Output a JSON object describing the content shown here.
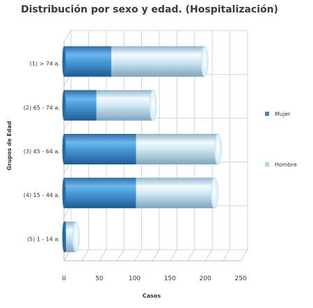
{
  "chart_data": {
    "type": "bar",
    "orientation": "horizontal",
    "stacked": true,
    "style": "3d-cylinder",
    "title": "Distribución por sexo y edad. (Hospitalización)",
    "xlabel": "Casos",
    "ylabel": "Grupos de Edad",
    "xlim": [
      0,
      250
    ],
    "xticks": [
      "0",
      "50",
      "100",
      "150",
      "200",
      "250"
    ],
    "grid": true,
    "legend_position": "right",
    "categories": [
      "(1) > 74 a.",
      "(2) 65 - 74 a.",
      "(3) 45 - 64 a.",
      "(4) 15 - 44 a.",
      "(5) 1 - 14 a."
    ],
    "series": [
      {
        "name": "Mujer",
        "color": "#3d87c8",
        "values": [
          67,
          46,
          102,
          102,
          3
        ]
      },
      {
        "name": "Hombre",
        "color": "#a9d7f2",
        "values": [
          132,
          80,
          116,
          111,
          14
        ]
      }
    ]
  }
}
